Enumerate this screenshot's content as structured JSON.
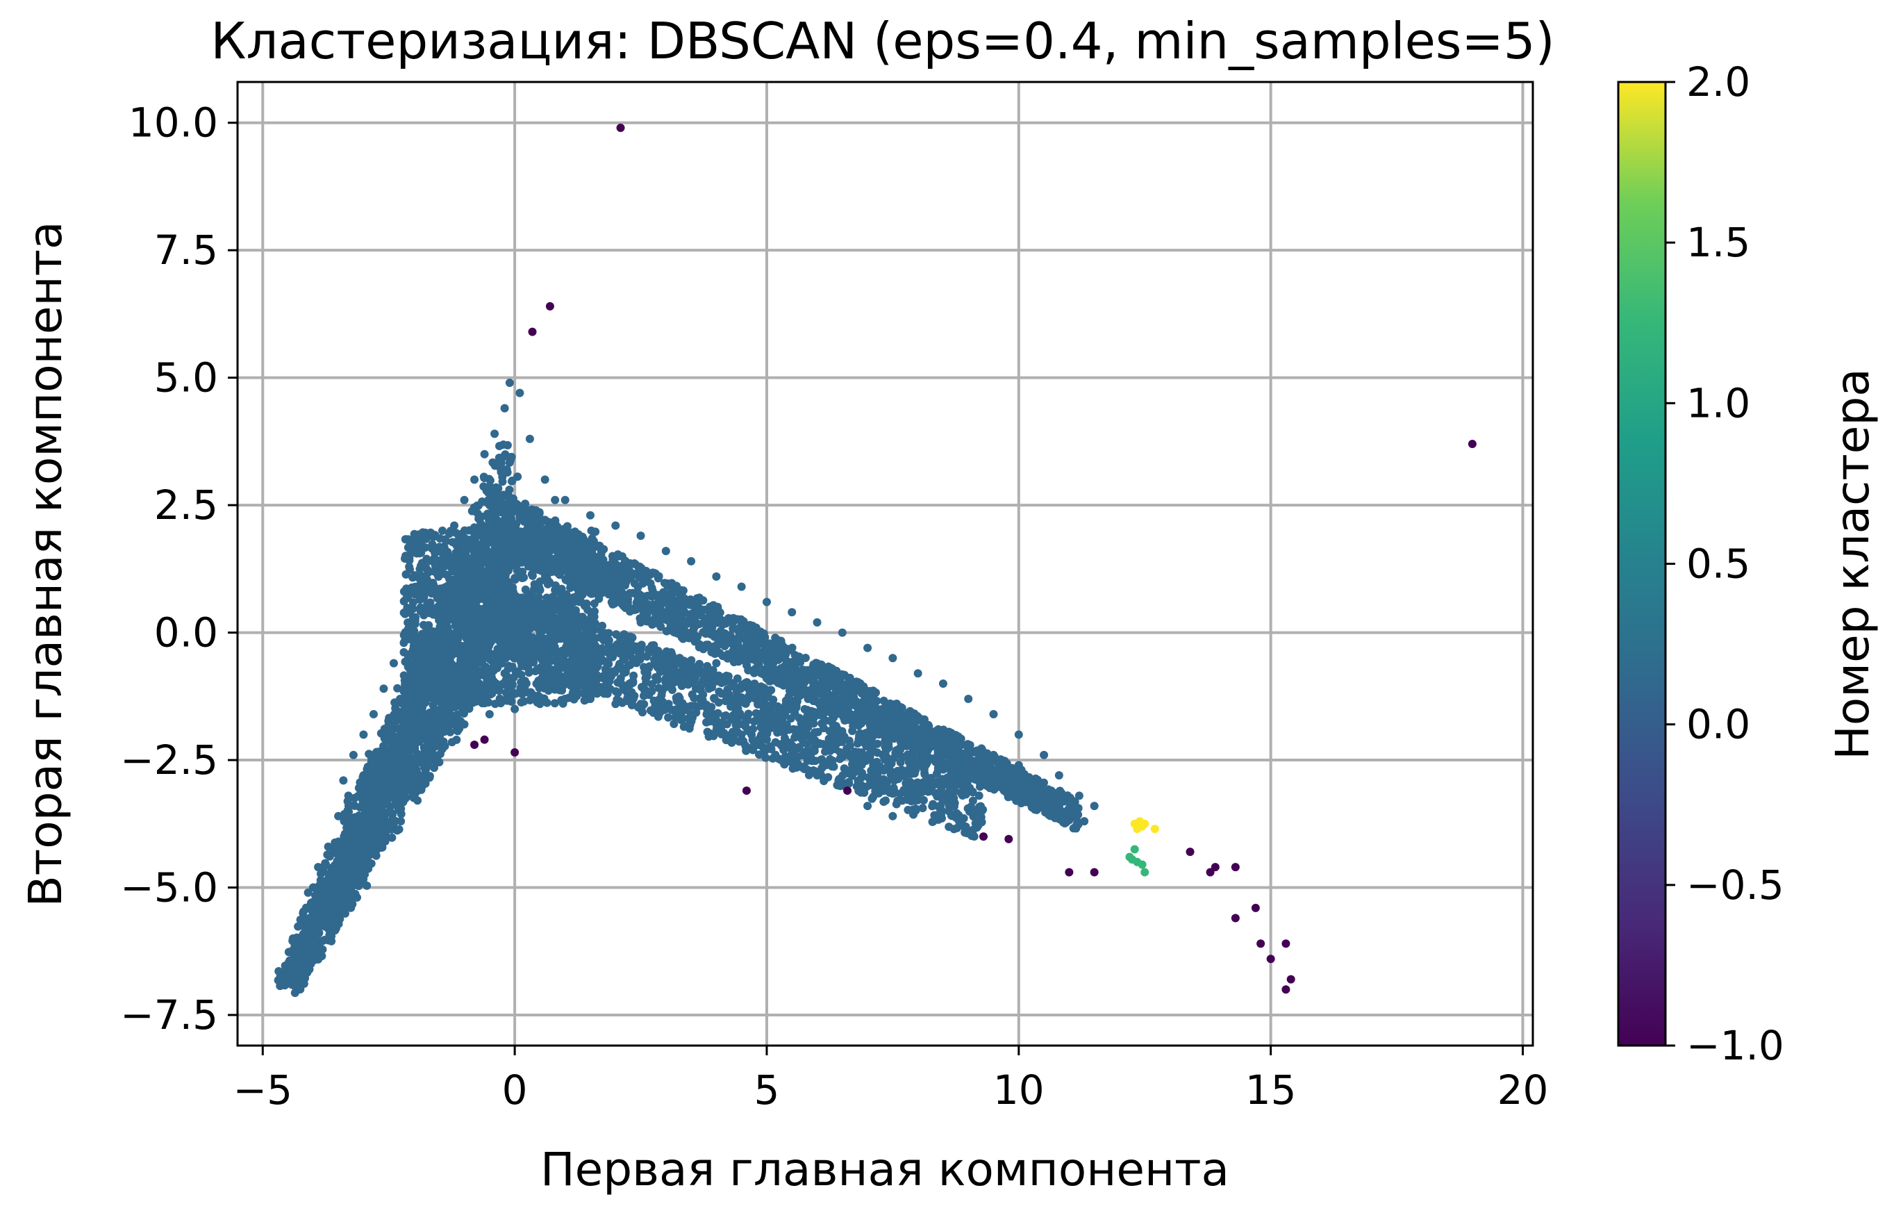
{
  "chart_data": {
    "type": "scatter",
    "title": "Кластеризация: DBSCAN (eps=0.4, min_samples=5)",
    "xlabel": "Первая главная компонента",
    "ylabel": "Вторая главная компонента",
    "xlim": [
      -5.5,
      20.2
    ],
    "ylim": [
      -8.1,
      10.8
    ],
    "xticks": [
      -5,
      0,
      5,
      10,
      15,
      20
    ],
    "xtick_labels": [
      "−5",
      "0",
      "5",
      "10",
      "15",
      "20"
    ],
    "yticks": [
      -7.5,
      -5.0,
      -2.5,
      0.0,
      2.5,
      5.0,
      7.5,
      10.0
    ],
    "ytick_labels": [
      "−7.5",
      "−5.0",
      "−2.5",
      "0.0",
      "2.5",
      "5.0",
      "7.5",
      "10.0"
    ],
    "grid": true,
    "colormap": "viridis",
    "colorbar": {
      "label": "Номер кластера",
      "range": [
        -1.0,
        2.0
      ],
      "ticks": [
        -1.0,
        -0.5,
        0.0,
        0.5,
        1.0,
        1.5,
        2.0
      ],
      "tick_labels": [
        "−1.0",
        "−0.5",
        "0.0",
        "0.5",
        "1.0",
        "1.5",
        "2.0"
      ]
    },
    "colors": {
      "noise": "#440154",
      "cluster_0": "#31688e",
      "cluster_1": "#35b779",
      "cluster_2": "#fde725",
      "grid": "#b0b0b0"
    },
    "clusters": [
      {
        "cluster": -1,
        "points": [
          [
            2.1,
            9.9
          ],
          [
            0.7,
            6.4
          ],
          [
            0.35,
            5.9
          ],
          [
            19.0,
            3.7
          ],
          [
            4.6,
            -3.1
          ],
          [
            6.6,
            -3.1
          ],
          [
            -0.8,
            -2.2
          ],
          [
            -0.6,
            -2.1
          ],
          [
            0.0,
            -2.35
          ],
          [
            9.3,
            -4.0
          ],
          [
            9.8,
            -4.05
          ],
          [
            11.0,
            -4.7
          ],
          [
            11.5,
            -4.7
          ],
          [
            13.4,
            -4.3
          ],
          [
            13.8,
            -4.7
          ],
          [
            13.9,
            -4.6
          ],
          [
            14.3,
            -4.6
          ],
          [
            14.3,
            -5.6
          ],
          [
            14.7,
            -5.4
          ],
          [
            14.8,
            -6.1
          ],
          [
            15.0,
            -6.4
          ],
          [
            15.3,
            -6.1
          ],
          [
            15.3,
            -7.0
          ],
          [
            15.4,
            -6.8
          ]
        ]
      },
      {
        "cluster": 0,
        "extent_note": "",
        "points": [
          [
            -4.6,
            -6.8
          ],
          [
            -4.4,
            -6.0
          ],
          [
            -4.2,
            -5.5
          ],
          [
            -4.0,
            -5.0
          ],
          [
            -3.9,
            -4.6
          ],
          [
            -3.7,
            -4.2
          ],
          [
            -3.5,
            -3.6
          ],
          [
            -3.4,
            -2.9
          ],
          [
            -3.2,
            -2.4
          ],
          [
            -3.0,
            -2.0
          ],
          [
            -2.8,
            -1.6
          ],
          [
            -2.6,
            -1.1
          ],
          [
            -2.4,
            -0.6
          ],
          [
            -2.2,
            -0.2
          ],
          [
            -2.0,
            0.3
          ],
          [
            -1.8,
            0.7
          ],
          [
            -1.6,
            1.2
          ],
          [
            -1.4,
            1.6
          ],
          [
            -1.2,
            2.1
          ],
          [
            -1.0,
            2.6
          ],
          [
            -0.8,
            3.0
          ],
          [
            -0.6,
            3.5
          ],
          [
            -0.4,
            3.9
          ],
          [
            -0.2,
            4.4
          ],
          [
            -0.1,
            4.9
          ],
          [
            0.1,
            4.7
          ],
          [
            0.3,
            3.8
          ],
          [
            0.6,
            3.0
          ],
          [
            1.0,
            2.6
          ],
          [
            1.5,
            2.3
          ],
          [
            2.0,
            2.1
          ],
          [
            2.5,
            1.9
          ],
          [
            3.0,
            1.6
          ],
          [
            3.5,
            1.4
          ],
          [
            4.0,
            1.1
          ],
          [
            4.5,
            0.9
          ],
          [
            5.0,
            0.6
          ],
          [
            5.5,
            0.4
          ],
          [
            6.0,
            0.2
          ],
          [
            6.5,
            0.0
          ],
          [
            7.0,
            -0.3
          ],
          [
            7.5,
            -0.5
          ],
          [
            8.0,
            -0.8
          ],
          [
            8.5,
            -1.0
          ],
          [
            9.0,
            -1.3
          ],
          [
            9.5,
            -1.6
          ],
          [
            10.0,
            -2.0
          ],
          [
            10.5,
            -2.4
          ],
          [
            10.8,
            -2.8
          ],
          [
            11.2,
            -3.2
          ],
          [
            11.5,
            -3.4
          ],
          [
            11.3,
            -3.7
          ],
          [
            10.9,
            -3.6
          ],
          [
            10.5,
            -3.4
          ],
          [
            10.0,
            -3.2
          ],
          [
            9.5,
            -3.0
          ],
          [
            9.0,
            -2.8
          ],
          [
            8.5,
            -2.9
          ],
          [
            8.0,
            -3.2
          ],
          [
            7.5,
            -3.6
          ],
          [
            7.0,
            -3.4
          ],
          [
            6.5,
            -3.0
          ],
          [
            6.0,
            -2.8
          ],
          [
            5.5,
            -2.4
          ],
          [
            5.0,
            -2.1
          ],
          [
            4.5,
            -2.0
          ],
          [
            4.0,
            -1.8
          ],
          [
            3.5,
            -1.6
          ],
          [
            3.0,
            -1.5
          ],
          [
            2.5,
            -1.4
          ],
          [
            2.0,
            -1.4
          ],
          [
            1.5,
            -1.3
          ],
          [
            1.0,
            -1.3
          ],
          [
            0.5,
            -1.4
          ],
          [
            0.0,
            -1.5
          ],
          [
            -0.5,
            -1.6
          ],
          [
            -1.0,
            -1.8
          ],
          [
            -1.5,
            -2.2
          ],
          [
            -2.0,
            -2.6
          ],
          [
            -2.5,
            -3.1
          ],
          [
            -3.0,
            -3.6
          ],
          [
            -3.5,
            -4.1
          ],
          [
            -3.8,
            -4.6
          ],
          [
            -4.1,
            -5.1
          ],
          [
            -1.0,
            0.0
          ],
          [
            -0.5,
            1.0
          ],
          [
            0.0,
            0.5
          ],
          [
            0.5,
            1.0
          ],
          [
            1.0,
            0.5
          ],
          [
            1.5,
            0.0
          ],
          [
            2.0,
            -0.3
          ],
          [
            2.5,
            0.2
          ],
          [
            3.0,
            -0.5
          ],
          [
            3.5,
            0.0
          ],
          [
            4.0,
            -0.6
          ],
          [
            4.5,
            -0.4
          ],
          [
            5.0,
            -0.9
          ],
          [
            5.5,
            -0.7
          ],
          [
            6.0,
            -1.1
          ],
          [
            6.5,
            -1.2
          ],
          [
            7.0,
            -1.6
          ],
          [
            7.5,
            -1.5
          ],
          [
            8.0,
            -1.9
          ],
          [
            8.5,
            -2.0
          ],
          [
            9.0,
            -2.2
          ],
          [
            9.5,
            -2.4
          ],
          [
            10.0,
            -2.6
          ],
          [
            0.5,
            2.0
          ],
          [
            -0.5,
            2.5
          ],
          [
            -1.5,
            0.5
          ],
          [
            -2.0,
            -1.0
          ],
          [
            -2.5,
            -1.8
          ],
          [
            -3.0,
            -2.8
          ],
          [
            1.0,
            1.5
          ],
          [
            2.0,
            1.0
          ],
          [
            3.0,
            0.6
          ],
          [
            -0.2,
            -0.8
          ],
          [
            1.2,
            -0.6
          ],
          [
            0.8,
            2.6
          ],
          [
            -1.8,
            -0.5
          ],
          [
            -2.2,
            -1.4
          ],
          [
            -2.8,
            -2.4
          ],
          [
            -3.3,
            -3.2
          ]
        ]
      },
      {
        "cluster": 1,
        "points": [
          [
            12.2,
            -4.4
          ],
          [
            12.3,
            -4.25
          ],
          [
            12.35,
            -4.5
          ],
          [
            12.45,
            -4.55
          ],
          [
            12.5,
            -4.7
          ],
          [
            12.25,
            -4.45
          ]
        ]
      },
      {
        "cluster": 2,
        "points": [
          [
            12.3,
            -3.75
          ],
          [
            12.4,
            -3.7
          ],
          [
            12.45,
            -3.8
          ],
          [
            12.35,
            -3.85
          ],
          [
            12.5,
            -3.75
          ],
          [
            12.7,
            -3.85
          ]
        ]
      }
    ]
  }
}
